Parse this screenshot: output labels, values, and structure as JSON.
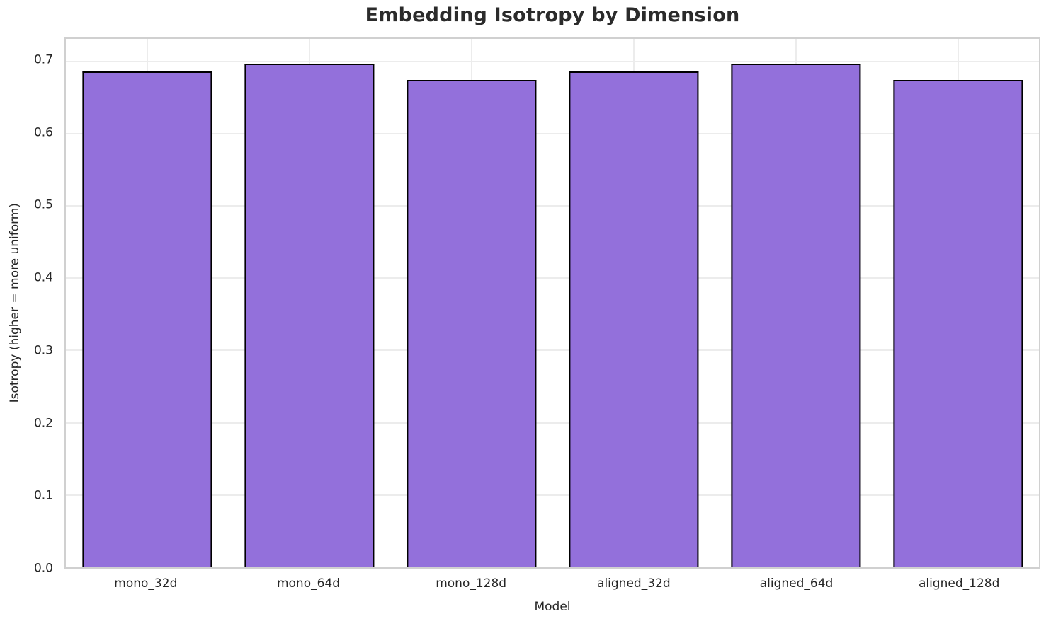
{
  "chart_data": {
    "type": "bar",
    "title": "Embedding Isotropy by Dimension",
    "xlabel": "Model",
    "ylabel": "Isotropy (higher = more uniform)",
    "categories": [
      "mono_32d",
      "mono_64d",
      "mono_128d",
      "aligned_32d",
      "aligned_64d",
      "aligned_128d"
    ],
    "values": [
      0.686,
      0.697,
      0.674,
      0.686,
      0.697,
      0.674
    ],
    "ylim": [
      0,
      0.731
    ],
    "yticks": [
      0.0,
      0.1,
      0.2,
      0.3,
      0.4,
      0.5,
      0.6,
      0.7
    ],
    "ytick_labels": [
      "0.0",
      "0.1",
      "0.2",
      "0.3",
      "0.4",
      "0.5",
      "0.6",
      "0.7"
    ],
    "grid": true,
    "legend": "none",
    "bar_width_fraction": 0.8,
    "colors": {
      "bar_fill": "#9370DB",
      "bar_edge": "#000000",
      "gridline": "#ececec",
      "spine": "#d0d0d0",
      "tick_text": "#262626",
      "title_text": "#2b2b2b",
      "background": "#ffffff"
    }
  }
}
